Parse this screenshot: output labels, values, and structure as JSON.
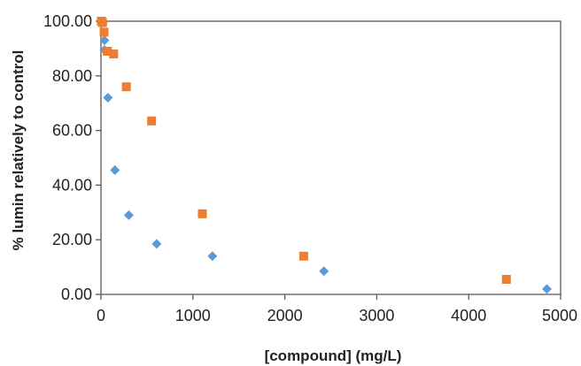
{
  "chart_data": {
    "type": "scatter",
    "title": "",
    "xlabel": "[compound] (mg/L)",
    "ylabel": "% lumin relatively to control",
    "xlim": [
      0,
      5000
    ],
    "ylim": [
      0,
      100
    ],
    "x_ticks": [
      "0",
      "1000",
      "2000",
      "3000",
      "4000",
      "5000"
    ],
    "y_ticks": [
      "0.00",
      "20.00",
      "40.00",
      "60.00",
      "80.00",
      "100.00"
    ],
    "grid": false,
    "legend": "none",
    "series": [
      {
        "color": "#5b9bd5",
        "marker": "diamond",
        "points": [
          {
            "x": 5,
            "y": 100.0
          },
          {
            "x": 19,
            "y": 99.5
          },
          {
            "x": 38,
            "y": 93.0
          },
          {
            "x": 38,
            "y": 89.5
          },
          {
            "x": 76,
            "y": 72.0
          },
          {
            "x": 152,
            "y": 45.5
          },
          {
            "x": 303,
            "y": 29.0
          },
          {
            "x": 606,
            "y": 18.5
          },
          {
            "x": 1212,
            "y": 14.0
          },
          {
            "x": 2425,
            "y": 8.5
          },
          {
            "x": 4850,
            "y": 2.0
          }
        ]
      },
      {
        "color": "#ed7d31",
        "marker": "square",
        "points": [
          {
            "x": 4,
            "y": 100.0
          },
          {
            "x": 17,
            "y": 99.5
          },
          {
            "x": 34,
            "y": 96.0
          },
          {
            "x": 69,
            "y": 89.0
          },
          {
            "x": 138,
            "y": 88.0
          },
          {
            "x": 276,
            "y": 76.0
          },
          {
            "x": 551,
            "y": 63.5
          },
          {
            "x": 1103,
            "y": 29.5
          },
          {
            "x": 2205,
            "y": 14.0
          },
          {
            "x": 4410,
            "y": 5.5
          }
        ]
      }
    ]
  }
}
